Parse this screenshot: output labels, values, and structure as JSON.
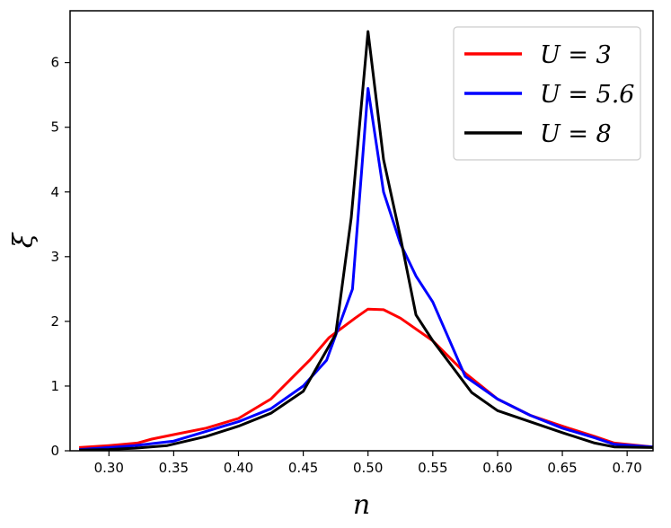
{
  "chart_data": {
    "type": "line",
    "xlabel": "n",
    "ylabel": "ξ",
    "xlim": [
      0.27,
      0.72
    ],
    "ylim": [
      0,
      6.8
    ],
    "xticks": [
      "0.30",
      "0.35",
      "0.40",
      "0.45",
      "0.50",
      "0.55",
      "0.60",
      "0.65",
      "0.70"
    ],
    "yticks": [
      "0",
      "1",
      "2",
      "3",
      "4",
      "5",
      "6"
    ],
    "grid": false,
    "legend_position": "top-right",
    "series": [
      {
        "name": "U = 3",
        "color": "#ff0000",
        "x": [
          0.277,
          0.3,
          0.322,
          0.333,
          0.35,
          0.375,
          0.4,
          0.425,
          0.44,
          0.455,
          0.47,
          0.49,
          0.5,
          0.512,
          0.525,
          0.55,
          0.575,
          0.6,
          0.625,
          0.65,
          0.675,
          0.69,
          0.72
        ],
        "y": [
          0.05,
          0.08,
          0.12,
          0.18,
          0.25,
          0.35,
          0.5,
          0.8,
          1.1,
          1.4,
          1.75,
          2.05,
          2.19,
          2.18,
          2.05,
          1.7,
          1.2,
          0.8,
          0.55,
          0.38,
          0.22,
          0.12,
          0.06
        ]
      },
      {
        "name": "U = 5.6",
        "color": "#0000ff",
        "x": [
          0.277,
          0.3,
          0.32,
          0.35,
          0.375,
          0.4,
          0.425,
          0.45,
          0.468,
          0.488,
          0.5,
          0.512,
          0.525,
          0.537,
          0.55,
          0.575,
          0.6,
          0.625,
          0.65,
          0.675,
          0.69,
          0.72
        ],
        "y": [
          0.02,
          0.05,
          0.08,
          0.15,
          0.3,
          0.45,
          0.65,
          1.0,
          1.4,
          2.5,
          5.6,
          4.0,
          3.2,
          2.7,
          2.3,
          1.15,
          0.8,
          0.55,
          0.35,
          0.2,
          0.1,
          0.06
        ]
      },
      {
        "name": "U = 8",
        "color": "#000000",
        "x": [
          0.277,
          0.3,
          0.32,
          0.345,
          0.375,
          0.4,
          0.425,
          0.45,
          0.475,
          0.487,
          0.5,
          0.512,
          0.525,
          0.537,
          0.55,
          0.58,
          0.6,
          0.625,
          0.65,
          0.675,
          0.69,
          0.72
        ],
        "y": [
          0.01,
          0.02,
          0.04,
          0.08,
          0.22,
          0.38,
          0.58,
          0.92,
          1.8,
          3.6,
          6.48,
          4.5,
          3.3,
          2.1,
          1.7,
          0.9,
          0.62,
          0.45,
          0.28,
          0.12,
          0.06,
          0.05
        ]
      }
    ]
  }
}
